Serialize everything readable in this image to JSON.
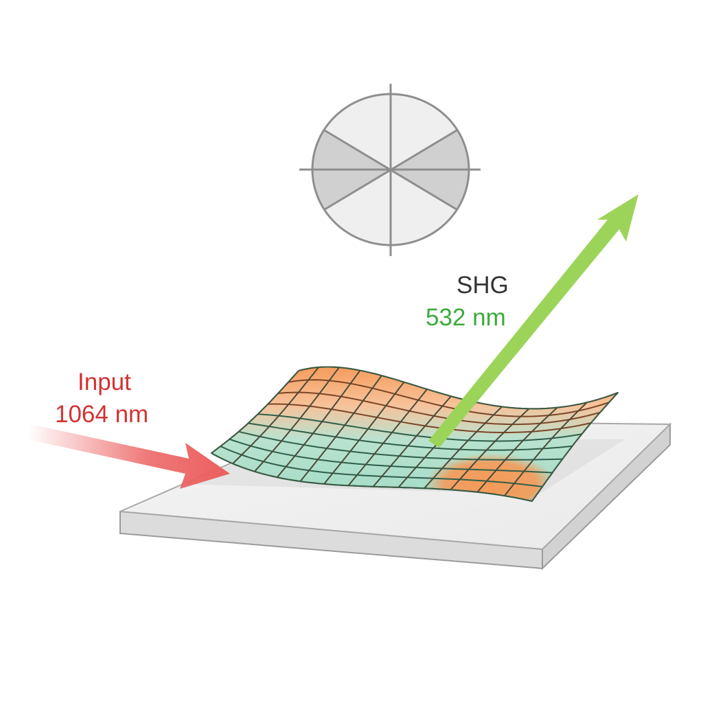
{
  "labels": {
    "input_title": "Input",
    "input_wavelength": "1064 nm",
    "output_title": "SHG",
    "output_wavelength": "532 nm"
  },
  "colors": {
    "input_beam": "#ec5f5f",
    "output_beam": "#9cd45a",
    "input_text": "#d33232",
    "output_text": "#3caa3c",
    "title_text": "#333333",
    "surface_top": "#f5a062",
    "surface_bottom": "#9fdcc8",
    "mesh_line": "#2f5e4a",
    "polar_dark": "#d0d0d0",
    "polar_light": "#efefef"
  },
  "icons": [
    "polar-pattern",
    "input-beam-arrow",
    "shg-beam-arrow",
    "wavy-surface-mesh",
    "substrate-plate"
  ]
}
